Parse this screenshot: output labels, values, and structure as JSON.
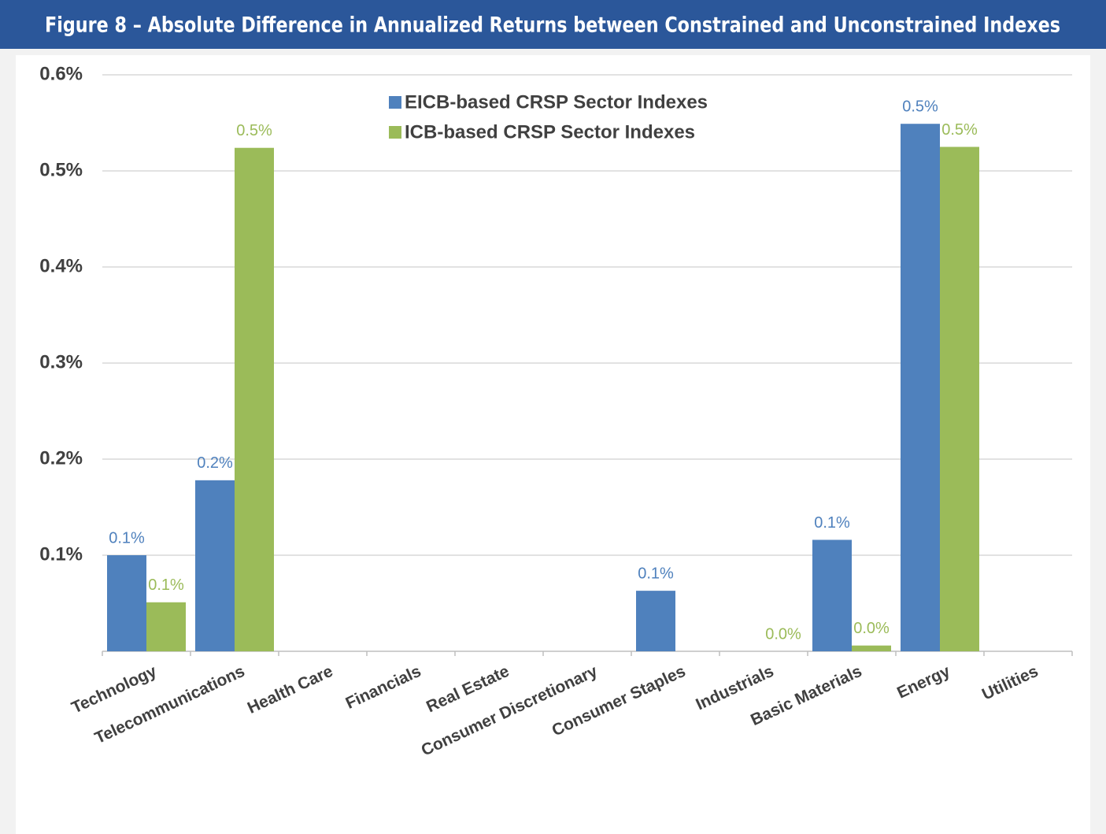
{
  "chart_data": {
    "type": "bar",
    "title": "Figure 8 – Absolute Difference in Annualized Returns between Constrained and Unconstrained Indexes",
    "categories": [
      "Technology",
      "Telecommunications",
      "Health Care",
      "Financials",
      "Real Estate",
      "Consumer Discretionary",
      "Consumer Staples",
      "Industrials",
      "Basic Materials",
      "Energy",
      "Utilities"
    ],
    "series": [
      {
        "name": "EICB-based CRSP Sector Indexes",
        "color": "#4f81bd",
        "values": [
          0.1,
          0.178,
          null,
          null,
          null,
          null,
          0.063,
          null,
          0.116,
          0.549,
          null
        ],
        "value_labels": [
          "0.1%",
          "0.2%",
          null,
          null,
          null,
          null,
          "0.1%",
          null,
          "0.1%",
          "0.5%",
          null
        ]
      },
      {
        "name": "ICB-based CRSP Sector Indexes",
        "color": "#9bbb59",
        "values": [
          0.051,
          0.524,
          null,
          null,
          null,
          null,
          null,
          0.0,
          0.006,
          0.525,
          null
        ],
        "value_labels": [
          "0.1%",
          "0.5%",
          null,
          null,
          null,
          null,
          null,
          "0.0%",
          "0.0%",
          "0.5%",
          null
        ]
      }
    ],
    "ylim": [
      0,
      0.6
    ],
    "yticks": [
      {
        "value": 0.1,
        "label": "0.1%"
      },
      {
        "value": 0.2,
        "label": "0.2%"
      },
      {
        "value": 0.3,
        "label": "0.3%"
      },
      {
        "value": 0.4,
        "label": "0.4%"
      },
      {
        "value": 0.5,
        "label": "0.5%"
      },
      {
        "value": 0.6,
        "label": "0.6%"
      }
    ],
    "grid": true
  }
}
